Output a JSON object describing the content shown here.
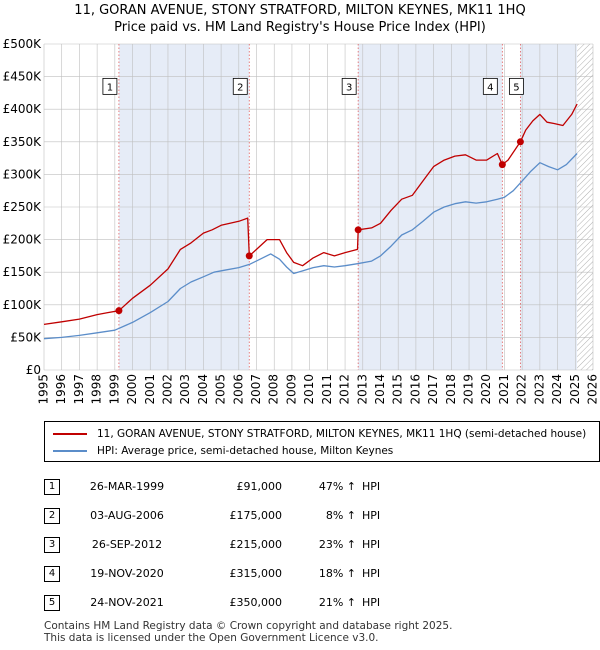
{
  "title": {
    "line1": "11, GORAN AVENUE, STONY STRATFORD, MILTON KEYNES, MK11 1HQ",
    "line2": "Price paid vs. HM Land Registry's House Price Index (HPI)"
  },
  "colors": {
    "property": "#c00000",
    "hpi": "#5b8dc9",
    "shade": "#e6ecf7",
    "grid": "#bfbfbf",
    "marker_line": "#e06060",
    "hatch": "#b0b0b0"
  },
  "chart_data": {
    "type": "line",
    "title": "11, GORAN AVENUE, STONY STRATFORD, MILTON KEYNES, MK11 1HQ",
    "subtitle": "Price paid vs. HM Land Registry's House Price Index (HPI)",
    "xlabel": "",
    "ylabel": "",
    "xlim": [
      1995,
      2026
    ],
    "ylim": [
      0,
      500000
    ],
    "x_ticks": [
      1995,
      1996,
      1997,
      1998,
      1999,
      2000,
      2001,
      2002,
      2003,
      2004,
      2005,
      2006,
      2007,
      2008,
      2009,
      2010,
      2011,
      2012,
      2013,
      2014,
      2015,
      2016,
      2017,
      2018,
      2019,
      2020,
      2021,
      2022,
      2023,
      2024,
      2025,
      2026
    ],
    "y_ticks": [
      0,
      50000,
      100000,
      150000,
      200000,
      250000,
      300000,
      350000,
      400000,
      450000,
      500000
    ],
    "y_tick_labels": [
      "£0",
      "£50K",
      "£100K",
      "£150K",
      "£200K",
      "£250K",
      "£300K",
      "£350K",
      "£400K",
      "£450K",
      "£500K"
    ],
    "grid": true,
    "shaded_periods": [
      [
        1999.23,
        2006.59
      ],
      [
        2012.74,
        2020.88
      ],
      [
        2021.9,
        2025.1
      ]
    ],
    "forecast_from": 2025.1,
    "series": [
      {
        "name": "11, GORAN AVENUE, STONY STRATFORD, MILTON KEYNES, MK11 1HQ (semi-detached house)",
        "color": "#c00000",
        "x": [
          1995.0,
          1996.0,
          1997.0,
          1998.0,
          1998.6,
          1999.23,
          2000.0,
          2001.0,
          2002.0,
          2002.7,
          2003.3,
          2004.0,
          2004.5,
          2005.0,
          2005.5,
          2006.0,
          2006.5,
          2006.59,
          2007.0,
          2007.6,
          2008.3,
          2008.7,
          2009.1,
          2009.6,
          2010.2,
          2010.8,
          2011.4,
          2012.0,
          2012.7,
          2012.74,
          2013.5,
          2014.0,
          2014.6,
          2015.2,
          2015.8,
          2016.4,
          2017.0,
          2017.6,
          2018.2,
          2018.8,
          2019.4,
          2020.0,
          2020.6,
          2020.88,
          2021.2,
          2021.6,
          2021.9,
          2022.2,
          2022.6,
          2023.0,
          2023.4,
          2023.8,
          2024.3,
          2024.8,
          2025.1
        ],
        "values": [
          70000,
          74000,
          78000,
          85000,
          88000,
          91000,
          110000,
          130000,
          155000,
          185000,
          195000,
          210000,
          215000,
          222000,
          225000,
          228000,
          233000,
          175000,
          185000,
          200000,
          200000,
          180000,
          165000,
          160000,
          172000,
          180000,
          175000,
          180000,
          185000,
          215000,
          218000,
          225000,
          245000,
          262000,
          268000,
          290000,
          312000,
          322000,
          328000,
          330000,
          322000,
          322000,
          332000,
          315000,
          322000,
          338000,
          350000,
          368000,
          382000,
          392000,
          380000,
          378000,
          375000,
          392000,
          408000
        ]
      },
      {
        "name": "HPI: Average price, semi-detached house, Milton Keynes",
        "color": "#5b8dc9",
        "x": [
          1995.0,
          1996.0,
          1997.0,
          1998.0,
          1999.0,
          2000.0,
          2001.0,
          2002.0,
          2002.7,
          2003.3,
          2004.0,
          2004.6,
          2005.2,
          2006.0,
          2006.6,
          2007.2,
          2007.8,
          2008.3,
          2008.7,
          2009.1,
          2009.6,
          2010.2,
          2010.8,
          2011.4,
          2012.0,
          2012.7,
          2013.5,
          2014.0,
          2014.6,
          2015.2,
          2015.8,
          2016.4,
          2017.0,
          2017.6,
          2018.2,
          2018.8,
          2019.4,
          2020.0,
          2020.6,
          2021.0,
          2021.5,
          2022.0,
          2022.5,
          2023.0,
          2023.5,
          2024.0,
          2024.5,
          2025.1
        ],
        "values": [
          48000,
          50000,
          53000,
          57000,
          61000,
          73000,
          88000,
          105000,
          125000,
          135000,
          143000,
          150000,
          153000,
          157000,
          162000,
          170000,
          178000,
          170000,
          158000,
          148000,
          152000,
          157000,
          160000,
          158000,
          160000,
          163000,
          167000,
          175000,
          190000,
          207000,
          215000,
          228000,
          242000,
          250000,
          255000,
          258000,
          256000,
          258000,
          262000,
          265000,
          275000,
          290000,
          305000,
          318000,
          312000,
          307000,
          315000,
          332000
        ]
      }
    ],
    "sales": [
      {
        "id": "1",
        "x": 1999.23,
        "value": 91000
      },
      {
        "id": "2",
        "x": 2006.59,
        "value": 175000
      },
      {
        "id": "3",
        "x": 2012.74,
        "value": 215000
      },
      {
        "id": "4",
        "x": 2020.88,
        "value": 315000
      },
      {
        "id": "5",
        "x": 2021.9,
        "value": 350000
      }
    ],
    "marker_label_value": 435000
  },
  "legend": {
    "items": [
      {
        "label": "11, GORAN AVENUE, STONY STRATFORD, MILTON KEYNES, MK11 1HQ (semi-detached house)",
        "color": "#c00000"
      },
      {
        "label": "HPI: Average price, semi-detached house, Milton Keynes",
        "color": "#5b8dc9"
      }
    ]
  },
  "sales_table": [
    {
      "id": "1",
      "date": "26-MAR-1999",
      "price": "£91,000",
      "pct": "47% ↑",
      "hpi": "HPI"
    },
    {
      "id": "2",
      "date": "03-AUG-2006",
      "price": "£175,000",
      "pct": "8% ↑",
      "hpi": "HPI"
    },
    {
      "id": "3",
      "date": "26-SEP-2012",
      "price": "£215,000",
      "pct": "23% ↑",
      "hpi": "HPI"
    },
    {
      "id": "4",
      "date": "19-NOV-2020",
      "price": "£315,000",
      "pct": "18% ↑",
      "hpi": "HPI"
    },
    {
      "id": "5",
      "date": "24-NOV-2021",
      "price": "£350,000",
      "pct": "21% ↑",
      "hpi": "HPI"
    }
  ],
  "footer": {
    "line1": "Contains HM Land Registry data © Crown copyright and database right 2025.",
    "line2": "This data is licensed under the Open Government Licence v3.0."
  }
}
